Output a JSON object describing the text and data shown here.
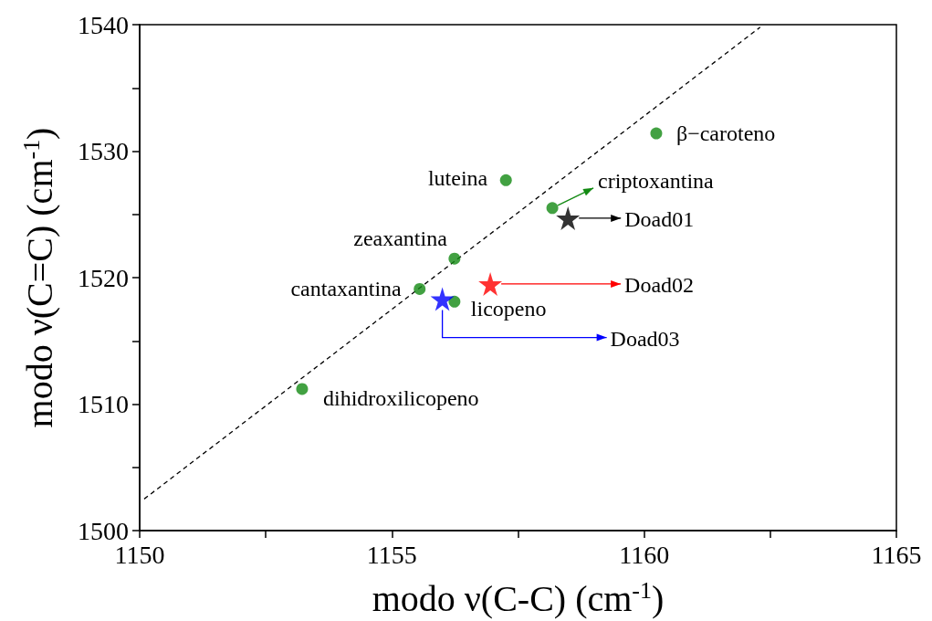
{
  "chart_data": {
    "type": "scatter",
    "xlabel": "modo ν(C-C) (cm$^{-1}$)",
    "ylabel": "modo ν(C=C) (cm$^{-1}$)",
    "legend": "right",
    "xlim": [
      1150,
      1165
    ],
    "xticks": [
      1150,
      {
        "value": 1152.5,
        "label": null
      },
      1155,
      {
        "value": 1157.5,
        "label": null
      },
      1160,
      {
        "value": 1162.5,
        "label": null
      },
      1165
    ],
    "ylim": [
      1500,
      1540
    ],
    "yticks": [
      1500,
      {
        "value": 1505,
        "label": null
      },
      1510,
      {
        "value": 1515,
        "label": null
      },
      1520,
      {
        "value": 1525,
        "label": null
      },
      1530,
      {
        "value": 1535,
        "label": null
      },
      1540
    ],
    "annotations": [
      {
        "text": "β−caroteno",
        "x": 1160.24,
        "y": 1531.4
      },
      {
        "text": "luteina",
        "x": 1157.26,
        "y": 1527.7
      },
      {
        "text": "criptoxantina",
        "x": 1158.18,
        "y": 1525.5
      },
      {
        "text": "zeaxantina",
        "x": 1156.24,
        "y": 1521.5
      },
      {
        "text": "cantaxantina",
        "x": 1155.55,
        "y": 1519.1
      },
      {
        "text": "licopeno",
        "x": 1156.24,
        "y": 1518.1
      },
      {
        "text": "dihidroxilicopeno",
        "x": 1153.22,
        "y": 1511.2
      }
    ],
    "series": [
      {
        "color": "#138a13",
        "marker": "circle",
        "x": [
          1160.24,
          1157.26,
          1158.18,
          1156.24,
          1155.55,
          1156.24,
          1153.22
        ],
        "values": [
          1531.4,
          1527.7,
          1525.5,
          1521.5,
          1519.1,
          1518.1,
          1511.2
        ]
      },
      {
        "type": "line",
        "color": "#000000",
        "marker": "none",
        "line_style": "dashed",
        "x": [
          1150.09,
          1162.3
        ],
        "values": [
          1502.5,
          1539.8
        ]
      },
      {
        "type": "scatter",
        "name": "Doad01",
        "color": "#000000",
        "marker": "star",
        "x": [
          1158.49
        ],
        "values": [
          1524.7
        ]
      },
      {
        "type": "scatter",
        "name": "Doad02",
        "color": "#ff0000",
        "marker": "star",
        "x": [
          1156.95
        ],
        "values": [
          1519.5
        ]
      },
      {
        "type": "scatter",
        "name": "Doad03",
        "color": "#0000ff",
        "marker": "star",
        "x": [
          1156.0
        ],
        "values": [
          1518.3
        ]
      }
    ]
  }
}
